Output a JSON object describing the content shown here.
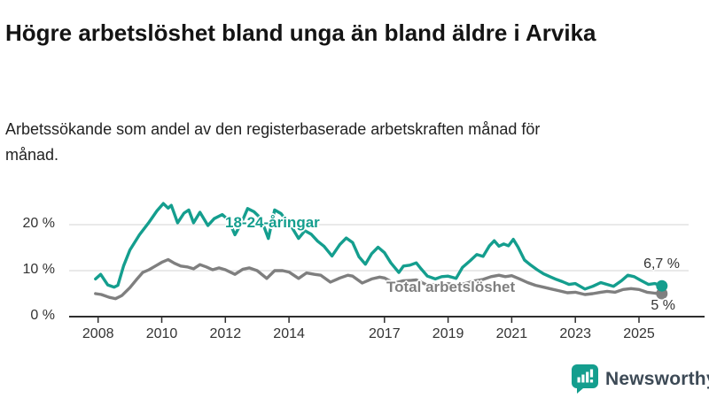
{
  "header": {
    "title": "Högre arbetslöshet bland unga än bland äldre i Arvika",
    "subtitle": "Arbetssökande som andel av den registerbaserade arbetskraften månad för månad."
  },
  "chart_data": {
    "type": "line",
    "title": "Högre arbetslöshet bland unga än bland äldre i Arvika",
    "xlabel": "",
    "ylabel": "Arbetssökande som andel av den registerbaserade arbetskraften",
    "x_unit": "year (monthly data)",
    "y_unit": "percent",
    "xlim": [
      2007.9,
      2025.9
    ],
    "ylim": [
      0,
      27
    ],
    "grid": "horizontal gridlines at 10 % and 20 % only",
    "legend_position": "inline labels on lines",
    "x_ticks": [
      {
        "year": 2008,
        "label": "2008"
      },
      {
        "year": 2010,
        "label": "2010"
      },
      {
        "year": 2012,
        "label": "2012"
      },
      {
        "year": 2014,
        "label": "2014"
      },
      {
        "year": 2017,
        "label": "2017"
      },
      {
        "year": 2019,
        "label": "2019"
      },
      {
        "year": 2021,
        "label": "2021"
      },
      {
        "year": 2023,
        "label": "2023"
      },
      {
        "year": 2025,
        "label": "2025"
      }
    ],
    "y_ticks": [
      {
        "value": 0,
        "label": "0 %"
      },
      {
        "value": 10,
        "label": "10 %"
      },
      {
        "value": 20,
        "label": "20 %"
      }
    ],
    "series": [
      {
        "name": "18-24-åringar",
        "color": "#149E8E",
        "end_label": "6,7 %",
        "end_value": 6.7,
        "points": [
          [
            2007.92,
            8.2
          ],
          [
            2008.08,
            9.2
          ],
          [
            2008.3,
            6.9
          ],
          [
            2008.5,
            6.4
          ],
          [
            2008.62,
            6.8
          ],
          [
            2008.8,
            11.0
          ],
          [
            2009.0,
            14.5
          ],
          [
            2009.3,
            17.8
          ],
          [
            2009.6,
            20.5
          ],
          [
            2009.85,
            23.0
          ],
          [
            2010.05,
            24.6
          ],
          [
            2010.2,
            23.6
          ],
          [
            2010.3,
            24.2
          ],
          [
            2010.5,
            20.4
          ],
          [
            2010.7,
            22.5
          ],
          [
            2010.85,
            23.2
          ],
          [
            2011.0,
            20.4
          ],
          [
            2011.2,
            22.7
          ],
          [
            2011.45,
            19.8
          ],
          [
            2011.65,
            21.3
          ],
          [
            2011.9,
            22.2
          ],
          [
            2012.1,
            21.0
          ],
          [
            2012.3,
            17.8
          ],
          [
            2012.5,
            20.3
          ],
          [
            2012.7,
            23.5
          ],
          [
            2012.9,
            22.8
          ],
          [
            2013.05,
            21.8
          ],
          [
            2013.2,
            19.8
          ],
          [
            2013.35,
            17.0
          ],
          [
            2013.55,
            23.2
          ],
          [
            2013.75,
            22.4
          ],
          [
            2013.95,
            20.6
          ],
          [
            2014.1,
            19.3
          ],
          [
            2014.3,
            17.0
          ],
          [
            2014.5,
            18.7
          ],
          [
            2014.7,
            17.9
          ],
          [
            2014.9,
            16.4
          ],
          [
            2015.1,
            15.3
          ],
          [
            2015.35,
            13.2
          ],
          [
            2015.6,
            15.7
          ],
          [
            2015.8,
            17.1
          ],
          [
            2016.0,
            16.1
          ],
          [
            2016.2,
            13.0
          ],
          [
            2016.4,
            11.4
          ],
          [
            2016.6,
            13.7
          ],
          [
            2016.8,
            15.1
          ],
          [
            2017.0,
            13.9
          ],
          [
            2017.2,
            11.7
          ],
          [
            2017.45,
            9.6
          ],
          [
            2017.6,
            11.0
          ],
          [
            2017.8,
            11.2
          ],
          [
            2018.0,
            11.7
          ],
          [
            2018.15,
            10.4
          ],
          [
            2018.35,
            8.8
          ],
          [
            2018.6,
            8.2
          ],
          [
            2018.8,
            8.7
          ],
          [
            2019.0,
            8.8
          ],
          [
            2019.25,
            8.3
          ],
          [
            2019.45,
            10.7
          ],
          [
            2019.7,
            12.2
          ],
          [
            2019.9,
            13.5
          ],
          [
            2020.1,
            13.1
          ],
          [
            2020.3,
            15.4
          ],
          [
            2020.45,
            16.5
          ],
          [
            2020.6,
            15.3
          ],
          [
            2020.75,
            15.8
          ],
          [
            2020.9,
            15.4
          ],
          [
            2021.05,
            16.8
          ],
          [
            2021.2,
            15.1
          ],
          [
            2021.4,
            12.3
          ],
          [
            2021.6,
            11.2
          ],
          [
            2021.8,
            10.2
          ],
          [
            2022.0,
            9.3
          ],
          [
            2022.2,
            8.7
          ],
          [
            2022.4,
            8.1
          ],
          [
            2022.6,
            7.6
          ],
          [
            2022.8,
            7.0
          ],
          [
            2023.0,
            7.2
          ],
          [
            2023.3,
            6.0
          ],
          [
            2023.55,
            6.6
          ],
          [
            2023.8,
            7.4
          ],
          [
            2024.0,
            7.0
          ],
          [
            2024.2,
            6.6
          ],
          [
            2024.45,
            7.8
          ],
          [
            2024.65,
            9.0
          ],
          [
            2024.85,
            8.7
          ],
          [
            2025.05,
            7.9
          ],
          [
            2025.3,
            7.0
          ],
          [
            2025.5,
            7.2
          ],
          [
            2025.72,
            6.7
          ]
        ]
      },
      {
        "name": "Total arbetslöshet",
        "color": "#7F7F7F",
        "end_label": "5 %",
        "end_value": 5.0,
        "points": [
          [
            2007.92,
            5.0
          ],
          [
            2008.1,
            4.8
          ],
          [
            2008.35,
            4.2
          ],
          [
            2008.55,
            3.9
          ],
          [
            2008.75,
            4.6
          ],
          [
            2009.0,
            6.3
          ],
          [
            2009.2,
            8.0
          ],
          [
            2009.4,
            9.6
          ],
          [
            2009.6,
            10.2
          ],
          [
            2009.8,
            11.0
          ],
          [
            2010.0,
            11.8
          ],
          [
            2010.2,
            12.4
          ],
          [
            2010.4,
            11.6
          ],
          [
            2010.6,
            11.0
          ],
          [
            2010.8,
            10.8
          ],
          [
            2011.0,
            10.4
          ],
          [
            2011.2,
            11.3
          ],
          [
            2011.4,
            10.8
          ],
          [
            2011.6,
            10.2
          ],
          [
            2011.8,
            10.6
          ],
          [
            2012.0,
            10.2
          ],
          [
            2012.3,
            9.2
          ],
          [
            2012.55,
            10.3
          ],
          [
            2012.75,
            10.6
          ],
          [
            2013.0,
            10.0
          ],
          [
            2013.3,
            8.3
          ],
          [
            2013.55,
            10.0
          ],
          [
            2013.8,
            10.0
          ],
          [
            2014.0,
            9.7
          ],
          [
            2014.3,
            8.3
          ],
          [
            2014.55,
            9.5
          ],
          [
            2014.8,
            9.2
          ],
          [
            2015.0,
            9.0
          ],
          [
            2015.3,
            7.5
          ],
          [
            2015.6,
            8.4
          ],
          [
            2015.85,
            9.0
          ],
          [
            2016.0,
            8.8
          ],
          [
            2016.3,
            7.3
          ],
          [
            2016.6,
            8.2
          ],
          [
            2016.85,
            8.6
          ],
          [
            2017.0,
            8.4
          ],
          [
            2017.3,
            7.3
          ],
          [
            2017.6,
            7.8
          ],
          [
            2017.85,
            7.9
          ],
          [
            2018.0,
            8.0
          ],
          [
            2018.3,
            7.0
          ],
          [
            2018.6,
            6.9
          ],
          [
            2018.85,
            7.1
          ],
          [
            2019.0,
            7.2
          ],
          [
            2019.3,
            6.8
          ],
          [
            2019.6,
            7.3
          ],
          [
            2019.85,
            7.8
          ],
          [
            2020.1,
            8.1
          ],
          [
            2020.35,
            8.7
          ],
          [
            2020.6,
            9.0
          ],
          [
            2020.8,
            8.7
          ],
          [
            2021.0,
            8.9
          ],
          [
            2021.25,
            8.2
          ],
          [
            2021.5,
            7.4
          ],
          [
            2021.75,
            6.8
          ],
          [
            2022.0,
            6.4
          ],
          [
            2022.25,
            6.0
          ],
          [
            2022.5,
            5.6
          ],
          [
            2022.75,
            5.2
          ],
          [
            2023.0,
            5.3
          ],
          [
            2023.3,
            4.8
          ],
          [
            2023.55,
            5.0
          ],
          [
            2023.8,
            5.3
          ],
          [
            2024.0,
            5.5
          ],
          [
            2024.25,
            5.3
          ],
          [
            2024.5,
            5.9
          ],
          [
            2024.75,
            6.1
          ],
          [
            2025.0,
            5.9
          ],
          [
            2025.25,
            5.3
          ],
          [
            2025.5,
            5.1
          ],
          [
            2025.72,
            5.0
          ]
        ]
      }
    ]
  },
  "logo": {
    "text": "Newsworthy",
    "icon": "bar-chart-speech-bubble-icon",
    "icon_color": "#149E8E",
    "text_color": "#3D4A56"
  }
}
